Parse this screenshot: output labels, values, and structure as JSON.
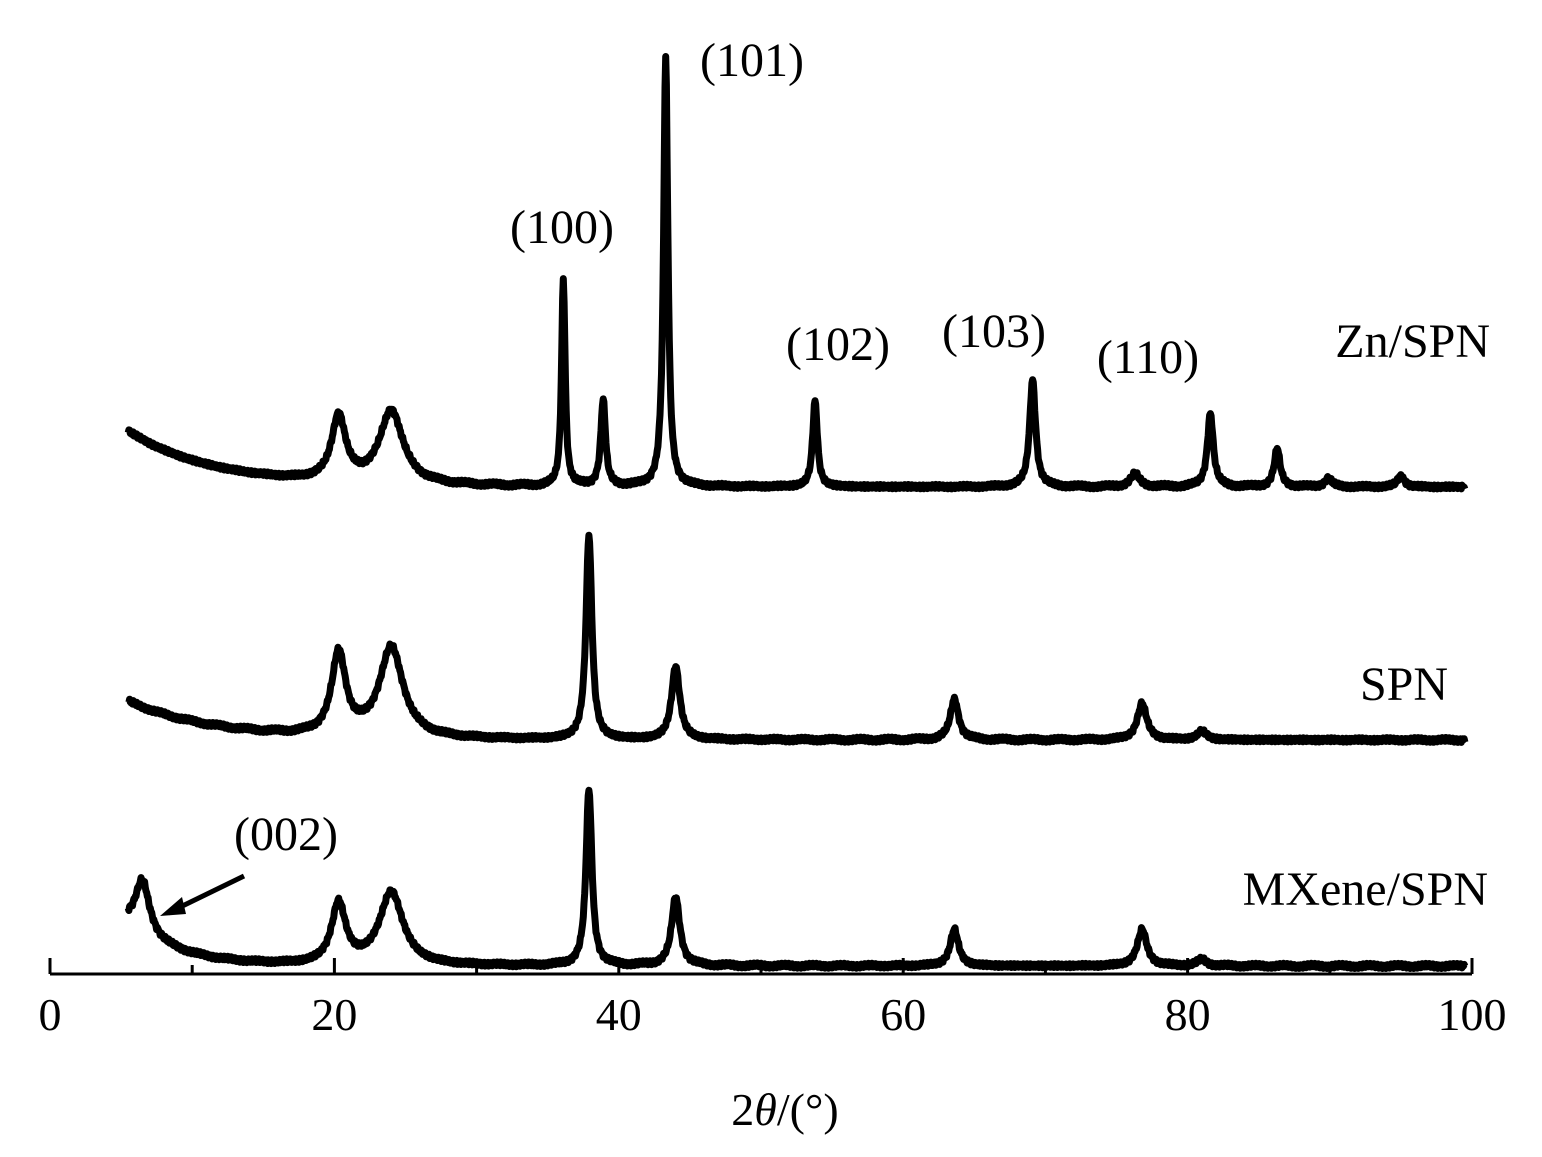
{
  "chart_data": {
    "type": "line",
    "title": "",
    "xlabel_prefix": "2",
    "xlabel_theta": "θ",
    "xlabel_suffix": "/(°)",
    "ylabel": "",
    "xlim": [
      0,
      100
    ],
    "x_ticks": [
      0,
      20,
      40,
      60,
      80,
      100
    ],
    "x_ticks_labels": [
      "0",
      "20",
      "40",
      "60",
      "80",
      "100"
    ],
    "x_minor_ticks": [
      10,
      30,
      50,
      70,
      90
    ],
    "x_range": [
      5.5,
      99.5
    ],
    "series": [
      {
        "name": "MXene/SPN",
        "baseline": 0,
        "start": [
          5.5,
          20
        ],
        "decay": 3.5,
        "peaks": [
          [
            6.5,
            25,
            0.6
          ],
          [
            20.3,
            28,
            0.6
          ],
          [
            24.0,
            34,
            1.0
          ],
          [
            37.9,
            82,
            0.25
          ],
          [
            44.0,
            32,
            0.35
          ],
          [
            63.6,
            17,
            0.35
          ],
          [
            76.8,
            17,
            0.4
          ],
          [
            81.0,
            3,
            0.4
          ]
        ]
      },
      {
        "name": "SPN",
        "baseline": 0,
        "start": [
          5.5,
          18
        ],
        "decay": 6,
        "peaks": [
          [
            20.3,
            38,
            0.6
          ],
          [
            24.0,
            42,
            1.0
          ],
          [
            37.9,
            95,
            0.25
          ],
          [
            44.0,
            34,
            0.35
          ],
          [
            63.6,
            19,
            0.35
          ],
          [
            76.8,
            17,
            0.4
          ],
          [
            81.0,
            4,
            0.4
          ]
        ]
      },
      {
        "name": "Zn/SPN",
        "baseline": 0,
        "start": [
          5.5,
          26
        ],
        "decay": 6,
        "peaks": [
          [
            20.3,
            30,
            0.6
          ],
          [
            24.0,
            34,
            1.0
          ],
          [
            36.1,
            96,
            0.15
          ],
          [
            38.9,
            40,
            0.2
          ],
          [
            43.3,
            200,
            0.18
          ],
          [
            53.8,
            40,
            0.2
          ],
          [
            69.1,
            50,
            0.25
          ],
          [
            76.3,
            6,
            0.4
          ],
          [
            81.6,
            34,
            0.25
          ],
          [
            86.3,
            18,
            0.25
          ],
          [
            89.9,
            4,
            0.3
          ],
          [
            95.0,
            5,
            0.3
          ]
        ]
      }
    ],
    "annotations": [
      {
        "text": "(100)",
        "x": 36.1
      },
      {
        "text": "(101)",
        "x": 43.3
      },
      {
        "text": "(102)",
        "x": 53.8
      },
      {
        "text": "(103)",
        "x": 69.1
      },
      {
        "text": "(110)",
        "x": 76.3
      },
      {
        "text": "(002)",
        "x": 6.5
      }
    ]
  }
}
